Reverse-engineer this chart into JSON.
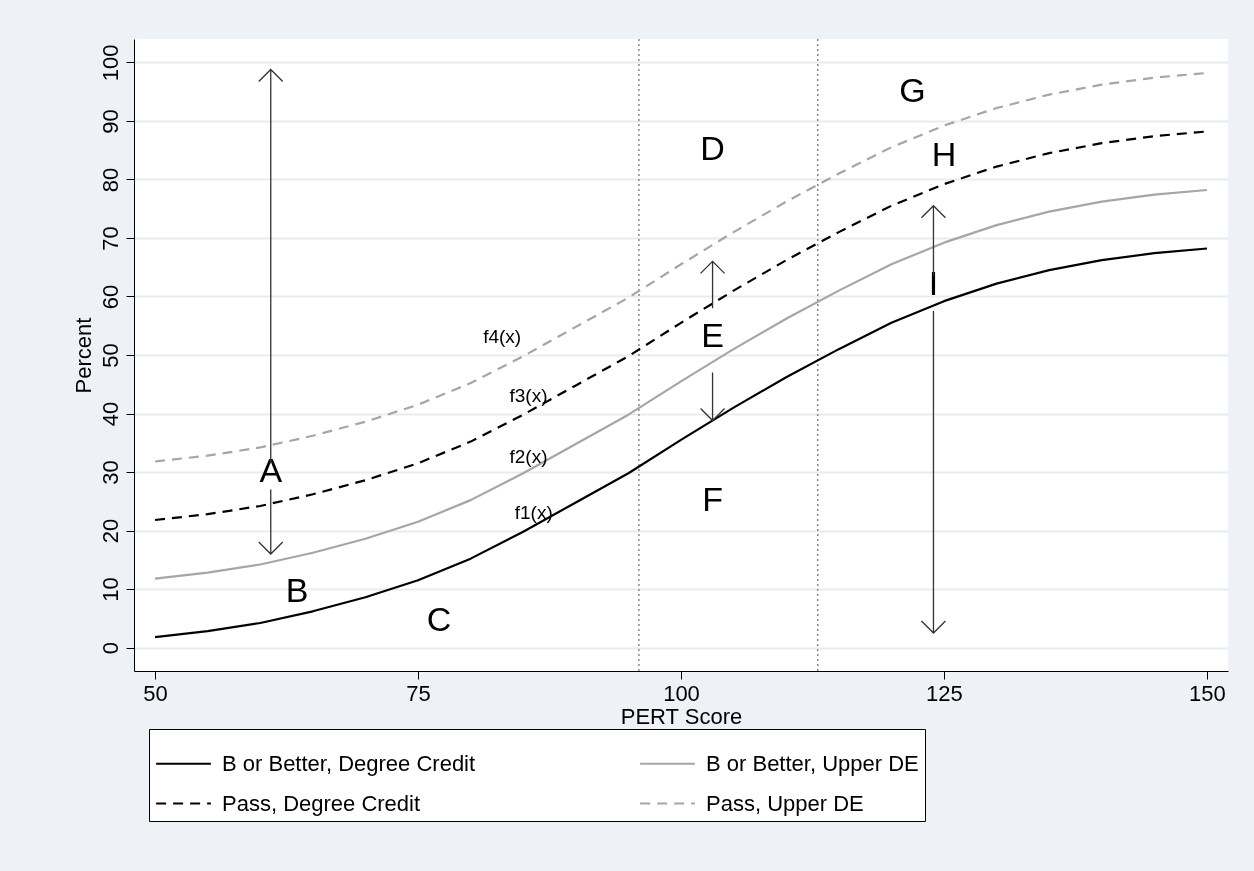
{
  "chart_data": {
    "type": "line",
    "xlabel": "PERT Score",
    "ylabel": "Percent",
    "x": [
      50,
      55,
      60,
      65,
      70,
      75,
      80,
      85,
      90,
      95,
      100,
      105,
      110,
      115,
      120,
      125,
      130,
      135,
      140,
      145,
      150
    ],
    "series": [
      {
        "name": "B or Better, Degree Credit",
        "color": "#000000",
        "line_style": "solid",
        "values": [
          1.8,
          2.8,
          4.2,
          6.2,
          8.6,
          11.5,
          15.2,
          19.8,
          24.8,
          29.8,
          35.5,
          41,
          46.2,
          51,
          55.5,
          59.2,
          62.2,
          64.5,
          66.2,
          67.4,
          68.2
        ]
      },
      {
        "name": "B or Better, Upper DE",
        "color": "#a6a6a6",
        "line_style": "solid",
        "values": [
          11.8,
          12.8,
          14.2,
          16.2,
          18.6,
          21.5,
          25.2,
          29.8,
          34.8,
          39.8,
          45.5,
          51,
          56.2,
          61,
          65.5,
          69.2,
          72.2,
          74.5,
          76.2,
          77.4,
          78.2
        ]
      },
      {
        "name": "Pass, Degree Credit",
        "color": "#000000",
        "line_style": "dashed",
        "values": [
          21.8,
          22.8,
          24.2,
          26.2,
          28.6,
          31.5,
          35.2,
          39.8,
          44.8,
          49.8,
          55.5,
          61,
          66.2,
          71,
          75.5,
          79.2,
          82.2,
          84.5,
          86.2,
          87.4,
          88.2
        ]
      },
      {
        "name": "Pass, Upper DE",
        "color": "#a6a6a6",
        "line_style": "dashed",
        "values": [
          31.8,
          32.8,
          34.2,
          36.2,
          38.6,
          41.5,
          45.2,
          49.8,
          54.8,
          59.8,
          65.5,
          71,
          76.2,
          81,
          85.5,
          89.2,
          92.2,
          94.5,
          96.2,
          97.4,
          98.2
        ]
      }
    ],
    "xlim": [
      48,
      152
    ],
    "ylim": [
      -4,
      104
    ],
    "xticks": [
      50,
      75,
      100,
      125,
      150
    ],
    "yticks": [
      0,
      10,
      20,
      30,
      40,
      50,
      60,
      70,
      80,
      90,
      100
    ],
    "grid": "y",
    "legend": "bottom",
    "ref_lines": [
      {
        "axis": "x",
        "value": 96,
        "line_style": "dotted",
        "color": "#777777"
      },
      {
        "axis": "x",
        "value": 113,
        "line_style": "dotted",
        "color": "#777777"
      }
    ],
    "annotations": [
      "A",
      "B",
      "C",
      "D",
      {
        "text": "E",
        "x": 103,
        "y": 38.8
      },
      "F",
      "G",
      "H",
      "I",
      "f4(x)",
      "f3(x)",
      "f2(x)",
      "f1(x)"
    ]
  }
}
